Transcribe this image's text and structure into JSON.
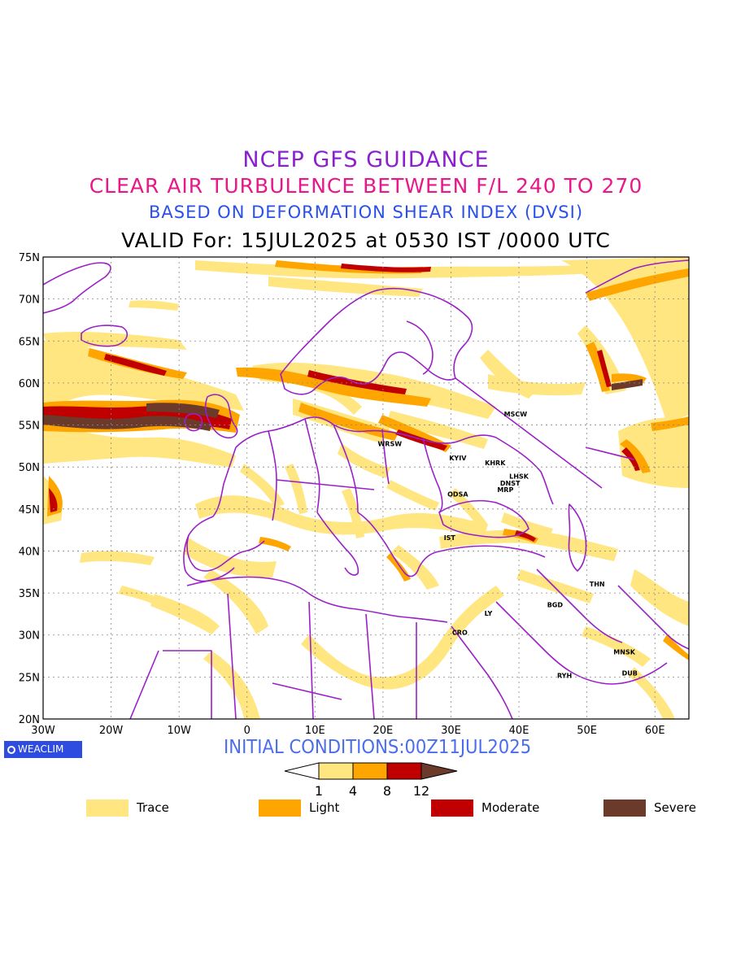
{
  "titles": {
    "line1": "NCEP GFS GUIDANCE",
    "line2": "CLEAR AIR TURBULENCE BETWEEN F/L 240 TO 270",
    "line3": "BASED ON DEFORMATION SHEAR INDEX (DVSI)",
    "line4": "VALID For: 15JUL2025 at 0530 IST /0000 UTC"
  },
  "axes": {
    "lat_ticks": [
      "75N",
      "70N",
      "65N",
      "60N",
      "55N",
      "50N",
      "45N",
      "40N",
      "35N",
      "30N",
      "25N",
      "20N"
    ],
    "lon_ticks": [
      "30W",
      "20W",
      "10W",
      "0",
      "10E",
      "20E",
      "30E",
      "40E",
      "50E",
      "60E"
    ],
    "lat_range": [
      20,
      75
    ],
    "lon_range": [
      -30,
      65
    ]
  },
  "cities": [
    {
      "name": "MSCW",
      "lon": 39.5,
      "lat": 56.0
    },
    {
      "name": "WRSW",
      "lon": 21.0,
      "lat": 52.5
    },
    {
      "name": "KYIV",
      "lon": 31.0,
      "lat": 50.8
    },
    {
      "name": "KHRK",
      "lon": 36.5,
      "lat": 50.2
    },
    {
      "name": "LHSK",
      "lon": 40.0,
      "lat": 48.6
    },
    {
      "name": "DNST",
      "lon": 38.7,
      "lat": 47.8
    },
    {
      "name": "MRP",
      "lon": 38.0,
      "lat": 47.0
    },
    {
      "name": "ODSA",
      "lon": 31.0,
      "lat": 46.5
    },
    {
      "name": "IST",
      "lon": 29.8,
      "lat": 41.3
    },
    {
      "name": "THN",
      "lon": 51.5,
      "lat": 35.8
    },
    {
      "name": "BGD",
      "lon": 45.3,
      "lat": 33.3
    },
    {
      "name": "LY",
      "lon": 35.5,
      "lat": 32.3
    },
    {
      "name": "CRO",
      "lon": 31.3,
      "lat": 30.0
    },
    {
      "name": "MNSK",
      "lon": 55.5,
      "lat": 27.7
    },
    {
      "name": "DUB",
      "lon": 56.3,
      "lat": 25.2
    },
    {
      "name": "RYH",
      "lon": 46.7,
      "lat": 24.9
    }
  ],
  "logo": {
    "text": "WEACLIM",
    "icon": "circle-logo-icon"
  },
  "initial_conditions": "INITIAL CONDITIONS:00Z11JUL2025",
  "colorbar": {
    "levels": [
      "1",
      "4",
      "8",
      "12"
    ],
    "colors": [
      "#ffe680",
      "#ffa500",
      "#c00000",
      "#6b3a2a"
    ]
  },
  "legend": [
    {
      "label": "Trace",
      "color": "#ffe680"
    },
    {
      "label": "Light",
      "color": "#ffa500"
    },
    {
      "label": "Moderate",
      "color": "#c00000"
    },
    {
      "label": "Severe",
      "color": "#6b3a2a"
    }
  ],
  "colors": {
    "border": "#9b1fc8",
    "trace": "#ffe680",
    "light": "#ffa500",
    "moderate": "#c00000",
    "severe": "#6b3a2a"
  }
}
